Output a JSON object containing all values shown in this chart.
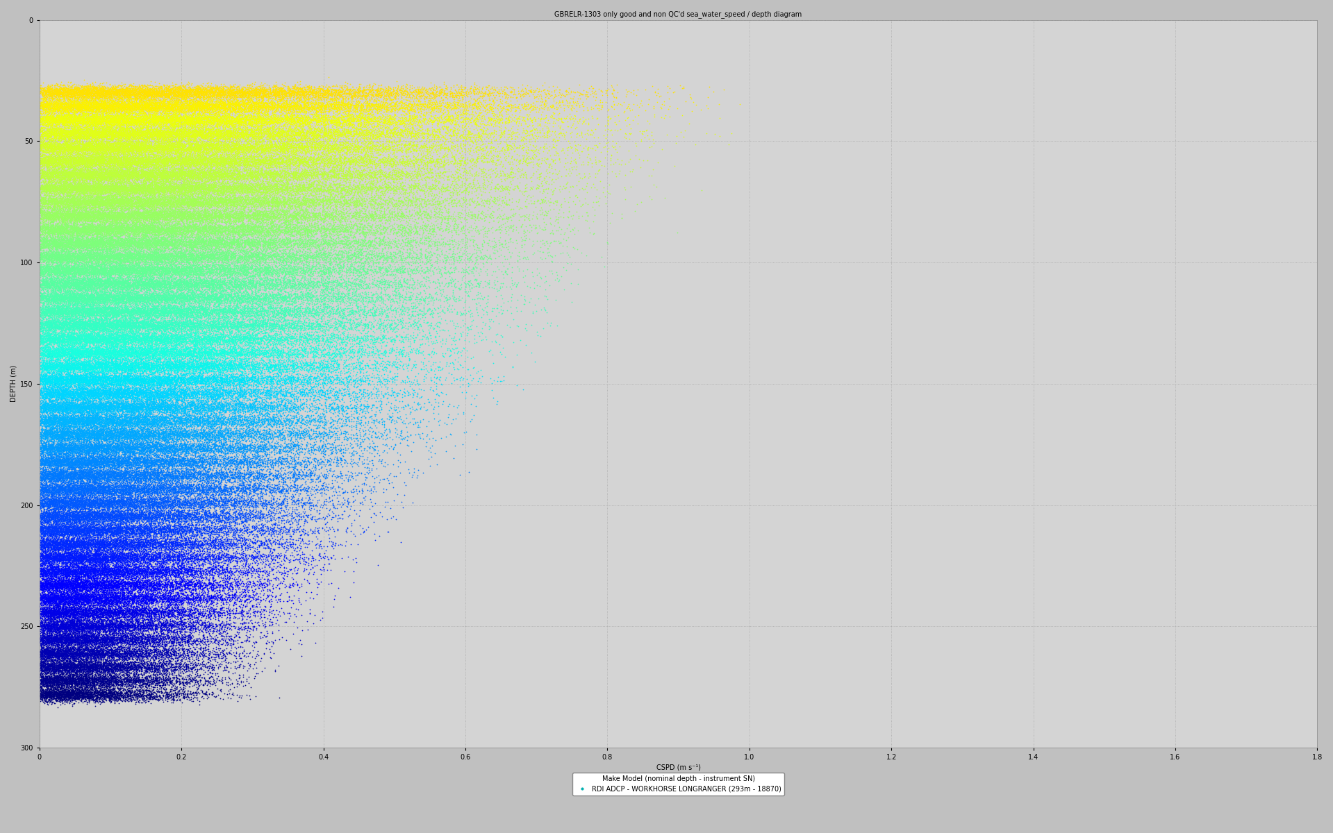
{
  "title": "GBRELR-1303 only good and non QC'd sea_water_speed / depth diagram",
  "xlabel": "CSPD (m s⁻¹)",
  "ylabel": "DEPTH (m)",
  "xlim": [
    0,
    1.8
  ],
  "ylim": [
    300,
    0
  ],
  "xticks": [
    0,
    0.2,
    0.4,
    0.6,
    0.8,
    1.0,
    1.2,
    1.4,
    1.6,
    1.8
  ],
  "yticks": [
    0,
    50,
    100,
    150,
    200,
    250,
    300
  ],
  "background_color": "#c0c0c0",
  "plot_bg_color": "#d4d4d4",
  "grid_color": "#aaaaaa",
  "title_fontsize": 7,
  "axis_fontsize": 7,
  "tick_fontsize": 7,
  "legend_text": [
    "Make Model (nominal depth - instrument SN)",
    "RDI ADCP - WORKHORSE LONGRANGER (293m - 18870)"
  ],
  "legend_color": "#00b0b0",
  "num_bins": 45,
  "depth_min": 30,
  "depth_max": 278,
  "n_points_base": 8000,
  "dot_size": 1.5
}
